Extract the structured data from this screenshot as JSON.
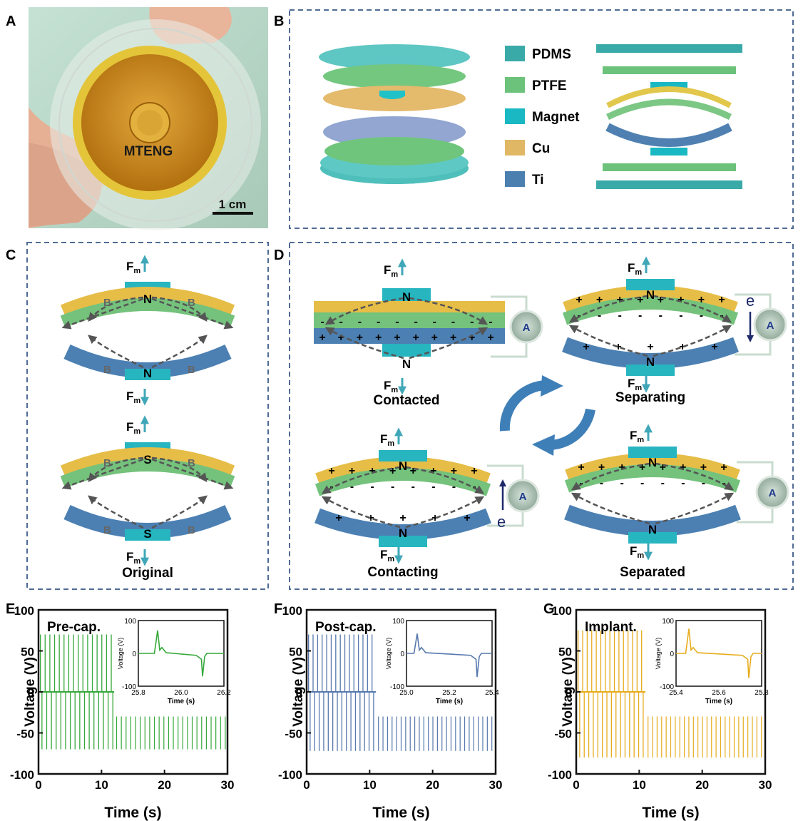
{
  "panels": {
    "A": {
      "letter": "A",
      "device_label": "MTENG",
      "scale_label": "1 cm",
      "colors": {
        "background": "#b9d6c7",
        "ring": "#e2c630",
        "disk": "#c98a18",
        "hand": "#e9b99c"
      }
    },
    "B": {
      "letter": "B",
      "legend": [
        {
          "label": "PDMS",
          "color": "#3aaaa9"
        },
        {
          "label": "PTFE",
          "color": "#6cc27a"
        },
        {
          "label": "Magnet",
          "color": "#19b8c3"
        },
        {
          "label": "Cu",
          "color": "#e0b765"
        },
        {
          "label": "Ti",
          "color": "#4b7fb0"
        }
      ]
    },
    "C": {
      "letter": "C",
      "label_force": "F",
      "label_force_sub": "m",
      "label_field": "B",
      "pole_north": "N",
      "pole_south": "S",
      "caption": "Original"
    },
    "D": {
      "letter": "D",
      "meter_label": "A",
      "electron_label": "e",
      "states": [
        "Contacted",
        "Separating",
        "Contacting",
        "Separated"
      ]
    },
    "E": {
      "letter": "E",
      "title": "Pre-cap.",
      "color": "#36a83a",
      "ylabel": "Voltage (V)",
      "xlabel": "Time (s)",
      "inset_ylabel": "Voltage (V)",
      "inset_xlabel": "Time (s)"
    },
    "F": {
      "letter": "F",
      "title": "Post-cap.",
      "color": "#5678ad",
      "ylabel": "Voltage (V)",
      "xlabel": "Time (s)",
      "inset_ylabel": "Voltage (V)",
      "inset_xlabel": "Time (s)"
    },
    "G": {
      "letter": "G",
      "title": "Implant.",
      "color": "#e6ac1c",
      "ylabel": "Voltage (V)",
      "xlabel": "Time (s)",
      "inset_ylabel": "Voltage (V)",
      "inset_xlabel": "Time (s)"
    }
  },
  "chart_data": [
    {
      "type": "line",
      "title": "Pre-cap.",
      "xlabel": "Time (s)",
      "ylabel": "Voltage (V)",
      "xlim": [
        0,
        30
      ],
      "ylim": [
        -100,
        100
      ],
      "xticks": [
        0,
        10,
        20,
        30
      ],
      "yticks": [
        -100,
        -50,
        0,
        50,
        100
      ],
      "signal_end_s": 12,
      "pulse_period_s": 0.75,
      "peak_positive_V": 70,
      "peak_negative_V": -70,
      "inset": {
        "xlim": [
          25.8,
          26.2
        ],
        "ylim": [
          -100,
          100
        ],
        "xticks": [
          25.8,
          26.0,
          26.2
        ],
        "yticks": [
          -100,
          0,
          100
        ],
        "pos_peak_time_s": 25.89,
        "pos_peak_V": 70,
        "neg_peak_time_s": 26.1,
        "neg_peak_V": -70
      }
    },
    {
      "type": "line",
      "title": "Post-cap.",
      "xlabel": "Time (s)",
      "ylabel": "Voltage (V)",
      "xlim": [
        0,
        30
      ],
      "ylim": [
        -100,
        100
      ],
      "xticks": [
        0,
        10,
        20,
        30
      ],
      "yticks": [
        -100,
        -50,
        0,
        50,
        100
      ],
      "signal_end_s": 11,
      "pulse_period_s": 0.72,
      "peak_positive_V": 70,
      "peak_negative_V": -72,
      "inset": {
        "xlim": [
          25.0,
          25.4
        ],
        "ylim": [
          -100,
          100
        ],
        "xticks": [
          25.0,
          25.2,
          25.4
        ],
        "yticks": [
          -100,
          0,
          100
        ],
        "pos_peak_time_s": 25.05,
        "pos_peak_V": 60,
        "neg_peak_time_s": 25.33,
        "neg_peak_V": -72
      }
    },
    {
      "type": "line",
      "title": "Implant.",
      "xlabel": "Time (s)",
      "ylabel": "Voltage (V)",
      "xlim": [
        0,
        30
      ],
      "ylim": [
        -100,
        100
      ],
      "xticks": [
        0,
        10,
        20,
        30
      ],
      "yticks": [
        -100,
        -50,
        0,
        50,
        100
      ],
      "signal_end_s": 11,
      "pulse_period_s": 0.72,
      "peak_positive_V": 75,
      "peak_negative_V": -80,
      "inset": {
        "xlim": [
          25.4,
          25.8
        ],
        "ylim": [
          -100,
          100
        ],
        "xticks": [
          25.4,
          25.6,
          25.8
        ],
        "yticks": [
          -100,
          0,
          100
        ],
        "pos_peak_time_s": 25.46,
        "pos_peak_V": 75,
        "neg_peak_time_s": 25.74,
        "neg_peak_V": -75
      }
    }
  ]
}
